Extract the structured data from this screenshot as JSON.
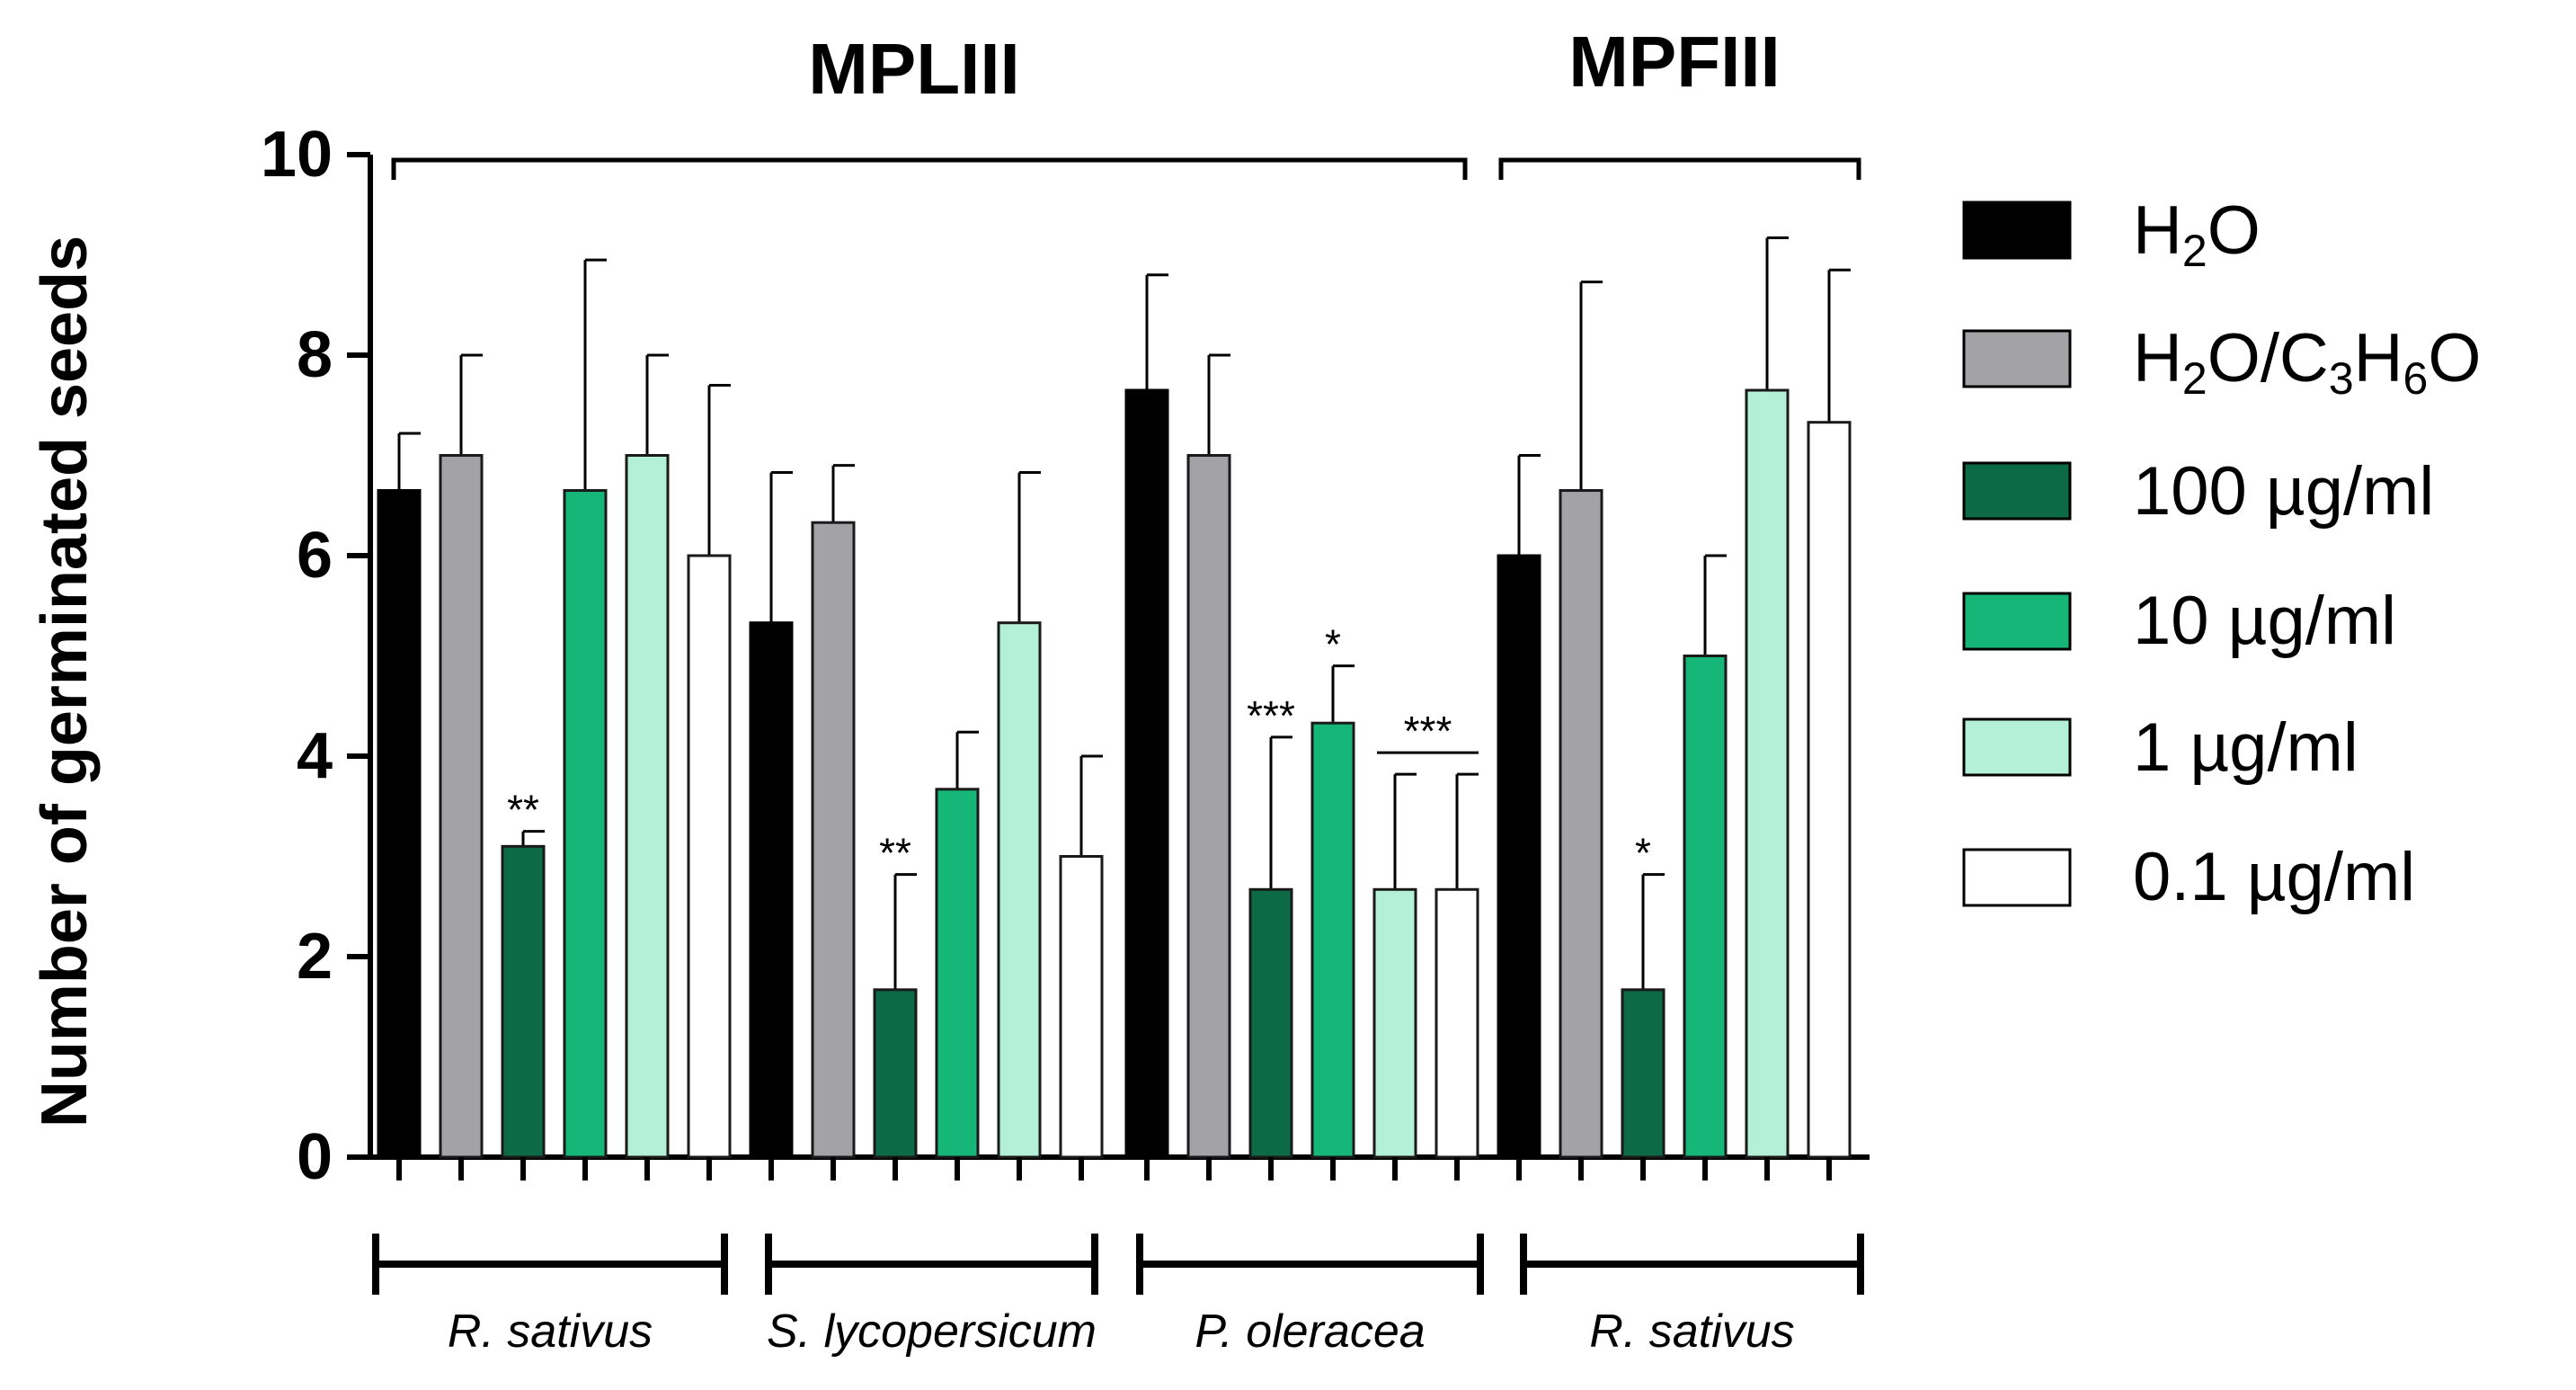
{
  "chart_data": {
    "type": "bar",
    "ylabel": "Number of germinated seeds",
    "ylim": [
      0,
      10
    ],
    "yticks": [
      "0",
      "2",
      "4",
      "6",
      "8",
      "10"
    ],
    "bracket_labels": [
      "MPLIII",
      "MPFIII"
    ],
    "groups": [
      "R. sativus",
      "S. lycopersicum",
      "P. oleracea",
      "R. sativus"
    ],
    "series": [
      {
        "name": "H2O",
        "label_base": "H",
        "label_sub1": "2",
        "label_rest": "O",
        "color": "#000000",
        "values": [
          6.65,
          5.33,
          7.65,
          6.0
        ],
        "errors": [
          0.57,
          1.5,
          1.15,
          1.0
        ]
      },
      {
        "name": "H2O/C3H6O",
        "color": "#a3a2a7",
        "values": [
          7.0,
          6.33,
          7.0,
          6.65
        ],
        "errors": [
          1.0,
          0.57,
          1.0,
          2.08
        ]
      },
      {
        "name": "100 µg/ml",
        "color": "#0c6b46",
        "values": [
          3.1,
          1.67,
          2.67,
          1.67
        ],
        "errors": [
          0.15,
          1.15,
          1.52,
          1.15
        ]
      },
      {
        "name": "10 µg/ml",
        "color": "#16b578",
        "values": [
          6.65,
          3.67,
          4.33,
          5.0
        ],
        "errors": [
          2.3,
          0.57,
          0.57,
          1.0
        ]
      },
      {
        "name": "1 µg/ml",
        "color": "#b4f0d8",
        "values": [
          7.0,
          5.33,
          2.67,
          7.65
        ],
        "errors": [
          1.0,
          1.5,
          1.15,
          1.52
        ]
      },
      {
        "name": "0.1 µg/ml",
        "color": "#ffffff",
        "values": [
          6.0,
          3.0,
          2.67,
          7.33
        ],
        "errors": [
          1.7,
          1.0,
          1.15,
          1.52
        ]
      }
    ],
    "significance": [
      {
        "group": 0,
        "series": 2,
        "label": "**"
      },
      {
        "group": 1,
        "series": 2,
        "label": "**"
      },
      {
        "group": 2,
        "series": 2,
        "label": "***"
      },
      {
        "group": 2,
        "series": 3,
        "label": "*"
      },
      {
        "group": 2,
        "series": 4,
        "span_to": 5,
        "label": "***"
      },
      {
        "group": 3,
        "series": 2,
        "label": "*"
      }
    ]
  },
  "legend_texts": {
    "h2o": {
      "a": "H",
      "b": "2",
      "c": "O"
    },
    "acetone": {
      "a": "H",
      "b": "2",
      "c": "O/C",
      "d": "3",
      "e": "H",
      "f": "6",
      "g": "O"
    }
  }
}
